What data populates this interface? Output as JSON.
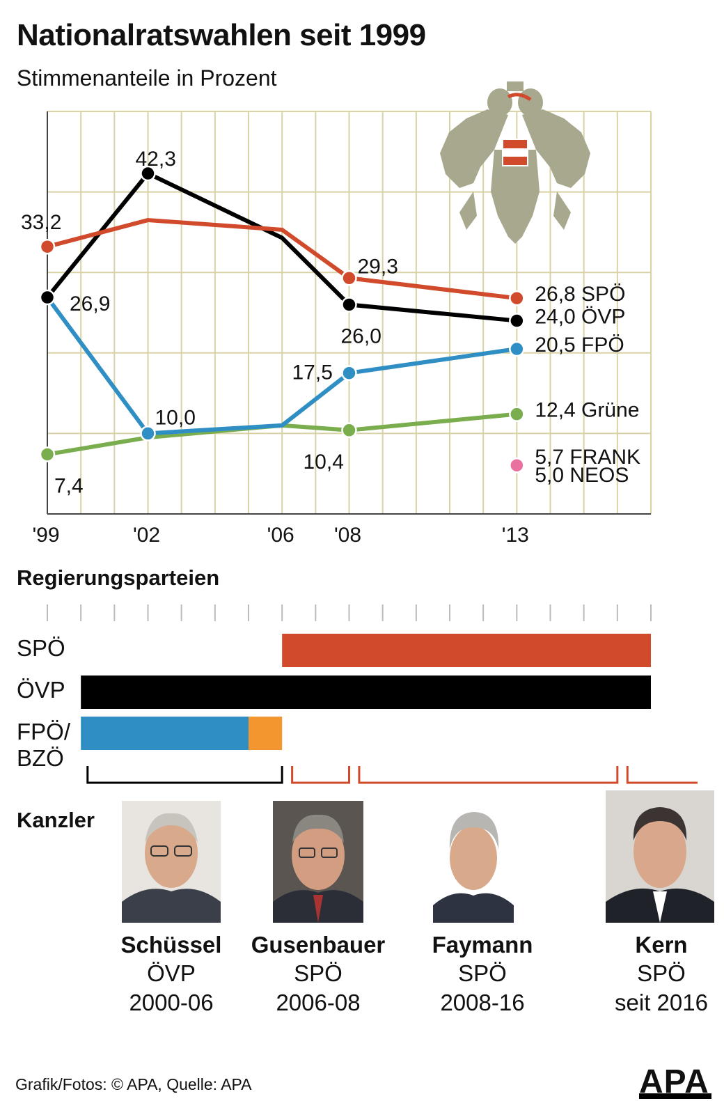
{
  "title": "Nationalratswahlen seit 1999",
  "subtitle": "Stimmenanteile in Prozent",
  "chart_data": {
    "type": "line",
    "x": [
      "'99",
      "'02",
      "'06",
      "'08",
      "'13"
    ],
    "x_numeric": [
      1999,
      2002,
      2006,
      2008,
      2013
    ],
    "x_range": [
      1999,
      2017
    ],
    "ylim": [
      0,
      50
    ],
    "grid": true,
    "series": [
      {
        "name": "SPÖ",
        "color": "#d04a2b",
        "values": [
          33.2,
          36.5,
          35.3,
          29.3,
          26.8
        ],
        "labels": [
          "33,2",
          "",
          "",
          "29,3",
          "26,8 SPÖ"
        ]
      },
      {
        "name": "ÖVP",
        "color": "#000000",
        "values": [
          26.9,
          42.3,
          34.3,
          26.0,
          24.0
        ],
        "labels": [
          "26,9",
          "42,3",
          "",
          "26,0",
          "24,0 ÖVP"
        ]
      },
      {
        "name": "FPÖ",
        "color": "#2f8fc4",
        "values": [
          26.9,
          10.0,
          11.0,
          17.5,
          20.5
        ],
        "labels": [
          "",
          "10,0",
          "",
          "17,5",
          "20,5 FPÖ"
        ]
      },
      {
        "name": "Grüne",
        "color": "#7aad4e",
        "values": [
          7.4,
          9.5,
          11.0,
          10.4,
          12.4
        ],
        "labels": [
          "7,4",
          "",
          "",
          "10,4",
          "12,4 Grüne"
        ]
      }
    ],
    "single_points": [
      {
        "name": "FRANK",
        "year": 2013,
        "value": 5.7,
        "label": "5,7 FRANK",
        "color": "#f6c331"
      },
      {
        "name": "NEOS",
        "year": 2013,
        "value": 5.0,
        "label": "5,0 NEOS",
        "color": "#e8719f"
      }
    ]
  },
  "government": {
    "title": "Regierungsparteien",
    "range": [
      1999,
      2017
    ],
    "labels": {
      "spo": "SPÖ",
      "ovp": "ÖVP",
      "fpo": "FPÖ/",
      "bzo": "BZÖ"
    },
    "bars": [
      {
        "party": "SPÖ",
        "from": 2006.0,
        "to": 2017.0,
        "color": "#d04a2b"
      },
      {
        "party": "ÖVP",
        "from": 2000.0,
        "to": 2017.0,
        "color": "#000000"
      },
      {
        "party": "FPÖ",
        "from": 2000.0,
        "to": 2005.0,
        "color": "#2f8fc4"
      },
      {
        "party": "BZÖ",
        "from": 2005.0,
        "to": 2006.0,
        "color": "#f4962f"
      }
    ],
    "terms": [
      {
        "from": 2000.2,
        "to": 2006.0,
        "color": "#000000"
      },
      {
        "from": 2006.3,
        "to": 2008.0,
        "color": "#d04a2b"
      },
      {
        "from": 2008.3,
        "to": 2016.0,
        "color": "#d04a2b"
      },
      {
        "from": 2016.3,
        "to": 2018.5,
        "color": "#d04a2b"
      }
    ]
  },
  "chancellors": {
    "title": "Kanzler",
    "items": [
      {
        "name": "Schüssel",
        "party": "ÖVP",
        "period": "2000-06"
      },
      {
        "name": "Gusenbauer",
        "party": "SPÖ",
        "period": "2006-08"
      },
      {
        "name": "Faymann",
        "party": "SPÖ",
        "period": "2008-16"
      },
      {
        "name": "Kern",
        "party": "SPÖ",
        "period": "seit 2016"
      }
    ]
  },
  "footer": "Grafik/Fotos: © APA, Quelle: APA",
  "logo": "APA"
}
